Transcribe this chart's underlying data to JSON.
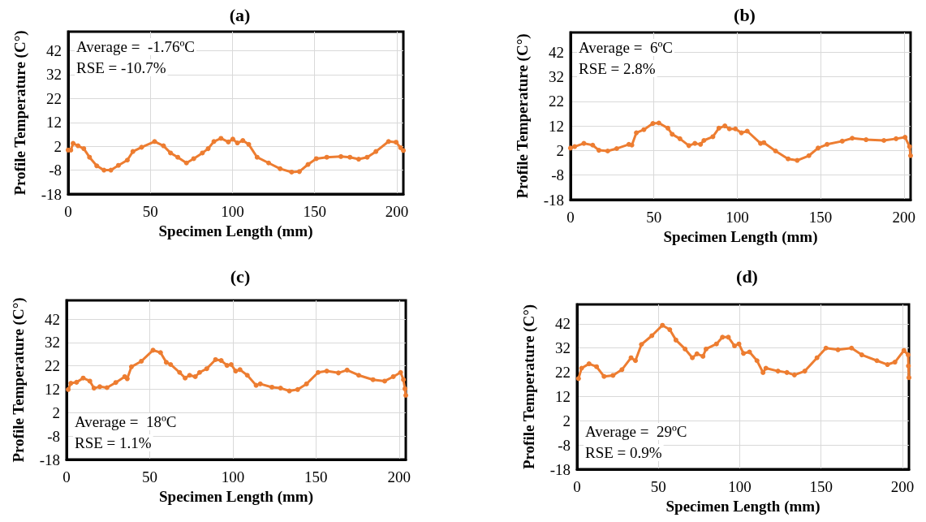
{
  "chart_data": [
    {
      "type": "line",
      "title": "(a)",
      "xlabel": "Specimen Length (mm)",
      "ylabel": "Profile Temperature (C°)",
      "annotations": [
        "Average =  -1.76ºC",
        "RSE = -10.7%"
      ],
      "xlim": [
        0,
        204
      ],
      "xticks": [
        0,
        50,
        100,
        150,
        200
      ],
      "ylim": [
        -18,
        50
      ],
      "yticks": [
        -18,
        -8,
        2,
        12,
        22,
        32,
        42
      ],
      "grid": true,
      "marker": "circle",
      "line_style": "solid",
      "series": [
        {
          "color": "#ed7d31",
          "x": [
            0,
            1.6,
            3,
            6,
            9.5,
            13,
            17.4,
            21.8,
            26,
            30.6,
            36,
            39.4,
            44.7,
            52.6,
            58,
            62.3,
            66.7,
            72,
            76.4,
            81.7,
            85.2,
            88.7,
            93,
            97.5,
            100.2,
            103,
            106.3,
            109.9,
            115,
            122,
            129,
            136,
            140.7,
            146,
            151,
            157.4,
            166,
            171.5,
            176.8,
            182,
            187.3,
            195,
            199.6,
            202.3,
            204
          ],
          "values": [
            0.4,
            0.4,
            3.2,
            2.2,
            1,
            -2.6,
            -6.2,
            -8,
            -8,
            -6,
            -3.8,
            -0.2,
            1.6,
            4,
            2.2,
            -0.8,
            -2.6,
            -5,
            -3.2,
            -0.8,
            1,
            4,
            5.3,
            3.8,
            5,
            3.4,
            4.4,
            2.8,
            -2.6,
            -5,
            -7.4,
            -8.8,
            -8.6,
            -5.6,
            -3.2,
            -2.6,
            -2.3,
            -2.6,
            -3.4,
            -2.6,
            -0.2,
            4,
            3.7,
            1.4,
            0.2
          ]
        }
      ]
    },
    {
      "type": "line",
      "title": "(b)",
      "xlabel": "Specimen Length (mm)",
      "ylabel": "Profile Temperature (C°)",
      "annotations": [
        "Average =  6ºC",
        "RSE = 2.8%"
      ],
      "xlim": [
        0,
        204
      ],
      "xticks": [
        0,
        50,
        100,
        150,
        200
      ],
      "ylim": [
        -18,
        50
      ],
      "yticks": [
        -18,
        -8,
        2,
        12,
        22,
        32,
        42
      ],
      "grid": true,
      "marker": "circle",
      "line_style": "solid",
      "series": [
        {
          "color": "#ed7d31",
          "x": [
            0,
            2.5,
            8,
            13.3,
            17,
            22.3,
            27.7,
            35,
            36.8,
            39.5,
            44,
            49.4,
            53,
            58.4,
            61,
            65.6,
            71,
            74.6,
            78,
            80,
            85.4,
            89,
            92.6,
            95.3,
            98.9,
            102.5,
            106,
            114,
            116,
            123,
            130.5,
            136,
            143,
            148.5,
            153.9,
            163,
            169,
            177.3,
            188,
            195.3,
            200.7,
            203.4,
            204
          ],
          "values": [
            3,
            3.6,
            4.9,
            4.2,
            2.1,
            1.8,
            2.8,
            4.5,
            4.2,
            9.2,
            10.5,
            13,
            13.2,
            11.1,
            8.6,
            6.8,
            4,
            4.9,
            4.5,
            6.1,
            7.6,
            11.1,
            12,
            10.8,
            10.8,
            9.2,
            9.9,
            4.9,
            5.2,
            1.8,
            -1.4,
            -2,
            -0.1,
            3,
            4.5,
            5.8,
            7,
            6.4,
            6.1,
            6.8,
            7.4,
            3.6,
            -0.1
          ]
        }
      ]
    },
    {
      "type": "line",
      "title": "(c)",
      "xlabel": "Specimen Length (mm)",
      "ylabel": "Profile Temperature (C°)",
      "annotations": [
        "Average =  18ºC",
        "RSE = 1.1%"
      ],
      "xlim": [
        0,
        204
      ],
      "xticks": [
        0,
        50,
        100,
        150,
        200
      ],
      "ylim": [
        -18,
        50
      ],
      "yticks": [
        -18,
        -8,
        2,
        12,
        22,
        32,
        42
      ],
      "grid": true,
      "marker": "circle",
      "line_style": "solid",
      "series": [
        {
          "color": "#ed7d31",
          "x": [
            1,
            2.6,
            6,
            10,
            14,
            16.5,
            20,
            24.3,
            29.6,
            35,
            36.5,
            39,
            45,
            52,
            56.5,
            60,
            62.6,
            68,
            71.3,
            74,
            77.4,
            80,
            84.3,
            89.6,
            93,
            96.5,
            99,
            101.7,
            104.3,
            108.7,
            114,
            116.5,
            123.5,
            128.7,
            134,
            139,
            144.3,
            151.3,
            156.5,
            163.5,
            168.7,
            175.7,
            184.3,
            191.3,
            196.5,
            200.9,
            202.6,
            203.5,
            204
          ],
          "values": [
            11.9,
            14.6,
            15,
            16.8,
            15.5,
            12.5,
            13.1,
            12.7,
            14.9,
            17.4,
            16.5,
            21.6,
            24,
            28.7,
            27.7,
            23.5,
            22.6,
            19.2,
            16.8,
            18,
            17.4,
            19.2,
            20.8,
            24.7,
            24.3,
            22.2,
            22.6,
            19.8,
            20.4,
            18,
            13.7,
            14.3,
            12.9,
            12.5,
            11.3,
            11.9,
            14.3,
            19.2,
            19.8,
            19,
            20.2,
            18,
            16.1,
            15.5,
            17.4,
            19.2,
            16.1,
            12.2,
            9.4
          ]
        }
      ]
    },
    {
      "type": "line",
      "title": "(d)",
      "xlabel": "Specimen Length (mm)",
      "ylabel": "Profile Temperature (C°)",
      "annotations": [
        "Average =  29ºC",
        "RSE = 0.9%"
      ],
      "xlim": [
        0,
        204
      ],
      "xticks": [
        0,
        50,
        100,
        150,
        200
      ],
      "ylim": [
        -18,
        50
      ],
      "yticks": [
        -18,
        -8,
        2,
        12,
        22,
        32,
        42
      ],
      "grid": true,
      "marker": "circle",
      "line_style": "solid",
      "series": [
        {
          "color": "#ed7d31",
          "x": [
            0.9,
            2.8,
            7.4,
            12,
            16.6,
            22.1,
            27.6,
            33.2,
            35.9,
            39.6,
            46,
            52.5,
            57,
            60.8,
            66.4,
            70.9,
            73.7,
            77.4,
            79.3,
            85.7,
            89.4,
            93,
            96.8,
            99.5,
            102.3,
            106,
            110.6,
            114.3,
            116.1,
            123.5,
            129,
            133.6,
            140,
            147.5,
            153,
            160.4,
            168.7,
            175,
            184.3,
            190.8,
            195.4,
            200.9,
            203.5,
            203.7,
            204
          ],
          "values": [
            19.4,
            23.7,
            25.5,
            24.3,
            20.3,
            20.7,
            23.1,
            28,
            26.8,
            33.5,
            37.1,
            41.4,
            39.6,
            35.3,
            31.6,
            28,
            29.6,
            28.6,
            31.6,
            33.7,
            36.5,
            36.5,
            32.9,
            33.7,
            29.8,
            30.4,
            26.8,
            21.9,
            23.7,
            22.5,
            21.9,
            20.9,
            22.5,
            28,
            32,
            31.3,
            32,
            29.2,
            26.8,
            25.2,
            26.2,
            31,
            29.2,
            24.6,
            19.8
          ]
        }
      ]
    }
  ]
}
